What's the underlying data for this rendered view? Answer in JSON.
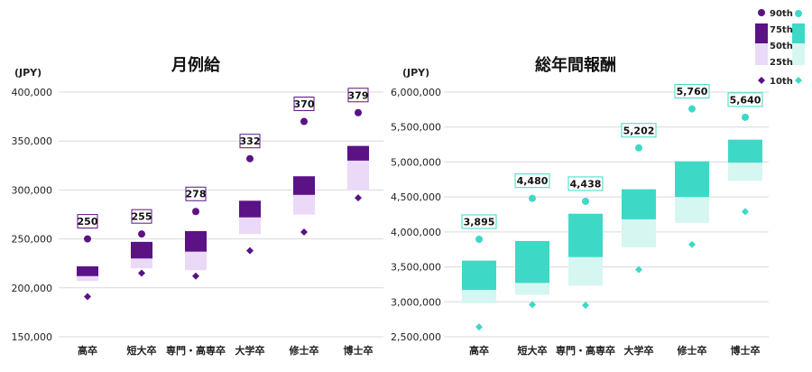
{
  "chart_data": [
    {
      "type": "box",
      "title": "月例給",
      "ylabel": "(JPY)",
      "ylim": [
        150000,
        400000
      ],
      "yticks": [
        "150,000",
        "200,000",
        "250,000",
        "300,000",
        "350,000",
        "400,000"
      ],
      "categories": [
        "高卒",
        "短大卒",
        "専門・高専卒",
        "大学卒",
        "修士卒",
        "博士卒"
      ],
      "series": [
        {
          "name": "10th",
          "values": [
            191000,
            215000,
            212000,
            238000,
            257000,
            292000
          ]
        },
        {
          "name": "25th",
          "values": [
            207000,
            220000,
            218000,
            255000,
            275000,
            300000
          ]
        },
        {
          "name": "50th",
          "values": [
            212000,
            230000,
            237000,
            272000,
            295000,
            330000
          ]
        },
        {
          "name": "75th",
          "values": [
            222000,
            247000,
            258000,
            289000,
            314000,
            345000
          ]
        },
        {
          "name": "90th",
          "values": [
            250000,
            255000,
            278000,
            332000,
            370000,
            379000
          ]
        }
      ],
      "data_labels": [
        "250",
        "255",
        "278",
        "332",
        "370",
        "379"
      ],
      "colors": {
        "lower_box": "#ead9f7",
        "upper_box": "#5a1285",
        "marker": "#5a1285"
      }
    },
    {
      "type": "box",
      "title": "総年間報酬",
      "ylabel": "(JPY)",
      "ylim": [
        2500000,
        6000000
      ],
      "yticks": [
        "2,500,000",
        "3,000,000",
        "3,500,000",
        "4,000,000",
        "4,500,000",
        "5,000,000",
        "5,500,000",
        "6,000,000"
      ],
      "categories": [
        "高卒",
        "短大卒",
        "専門・高専卒",
        "大学卒",
        "修士卒",
        "博士卒"
      ],
      "series": [
        {
          "name": "10th",
          "values": [
            2640000,
            2960000,
            2950000,
            3460000,
            3820000,
            4290000
          ]
        },
        {
          "name": "25th",
          "values": [
            2980000,
            3100000,
            3230000,
            3780000,
            4130000,
            4730000
          ]
        },
        {
          "name": "50th",
          "values": [
            3170000,
            3270000,
            3640000,
            4180000,
            4500000,
            4990000
          ]
        },
        {
          "name": "75th",
          "values": [
            3590000,
            3870000,
            4260000,
            4610000,
            5010000,
            5320000
          ]
        },
        {
          "name": "90th",
          "values": [
            3895000,
            4480000,
            4438000,
            5202000,
            5760000,
            5640000
          ]
        }
      ],
      "data_labels": [
        "3,895",
        "4,480",
        "4,438",
        "5,202",
        "5,760",
        "5,640"
      ],
      "colors": {
        "lower_box": "#d6f6f1",
        "upper_box": "#3dd9c6",
        "marker": "#3dd9c6"
      }
    }
  ],
  "legend": {
    "items": [
      "90th",
      "75th",
      "50th",
      "25th",
      "10th"
    ]
  }
}
